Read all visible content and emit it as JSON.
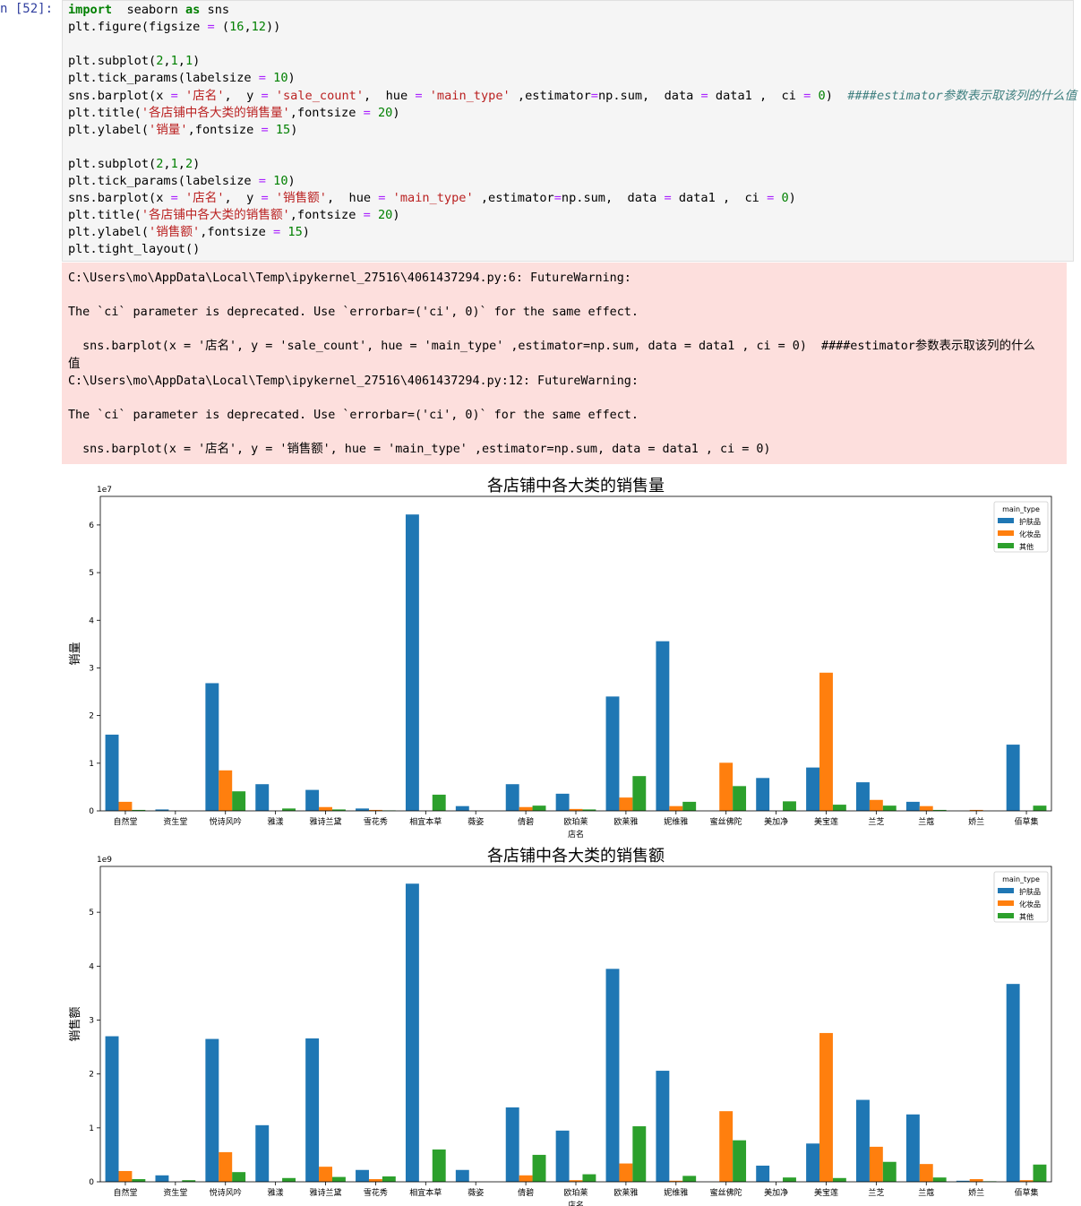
{
  "prompt": "n  [52]:",
  "code_lines": [
    [
      [
        "kw",
        "import"
      ],
      [
        "",
        "  seaborn "
      ],
      [
        "kw",
        "as"
      ],
      [
        "",
        " sns"
      ]
    ],
    [
      [
        "",
        "plt.figure(figsize "
      ],
      [
        "op",
        "="
      ],
      [
        "",
        " ("
      ],
      [
        "num",
        "16"
      ],
      [
        "",
        ","
      ],
      [
        "num",
        "12"
      ],
      [
        "",
        "))"
      ]
    ],
    [],
    [
      [
        "",
        "plt.subplot("
      ],
      [
        "num",
        "2"
      ],
      [
        "",
        ","
      ],
      [
        "num",
        "1"
      ],
      [
        "",
        ","
      ],
      [
        "num",
        "1"
      ],
      [
        "",
        ")"
      ]
    ],
    [
      [
        "",
        "plt.tick_params(labelsize "
      ],
      [
        "op",
        "="
      ],
      [
        "",
        " "
      ],
      [
        "num",
        "10"
      ],
      [
        "",
        ")"
      ]
    ],
    [
      [
        "",
        "sns.barplot(x "
      ],
      [
        "op",
        "="
      ],
      [
        "",
        " "
      ],
      [
        "str",
        "'店名'"
      ],
      [
        "",
        ",  y "
      ],
      [
        "op",
        "="
      ],
      [
        "",
        " "
      ],
      [
        "str",
        "'sale_count'"
      ],
      [
        "",
        ",  hue "
      ],
      [
        "op",
        "="
      ],
      [
        "",
        " "
      ],
      [
        "str",
        "'main_type'"
      ],
      [
        "",
        " ,estimator"
      ],
      [
        "op",
        "="
      ],
      [
        "",
        "np.sum,  data "
      ],
      [
        "op",
        "="
      ],
      [
        "",
        " data1 ,  ci "
      ],
      [
        "op",
        "="
      ],
      [
        "",
        " "
      ],
      [
        "num",
        "0"
      ],
      [
        "",
        ")  "
      ],
      [
        "cm",
        "####estimator参数表示取该列的什么值"
      ]
    ],
    [
      [
        "",
        "plt.title("
      ],
      [
        "str",
        "'各店铺中各大类的销售量'"
      ],
      [
        "",
        ",fontsize "
      ],
      [
        "op",
        "="
      ],
      [
        "",
        " "
      ],
      [
        "num",
        "20"
      ],
      [
        "",
        ")"
      ]
    ],
    [
      [
        "",
        "plt.ylabel("
      ],
      [
        "str",
        "'销量'"
      ],
      [
        "",
        ",fontsize "
      ],
      [
        "op",
        "="
      ],
      [
        "",
        " "
      ],
      [
        "num",
        "15"
      ],
      [
        "",
        ")"
      ]
    ],
    [],
    [
      [
        "",
        "plt.subplot("
      ],
      [
        "num",
        "2"
      ],
      [
        "",
        ","
      ],
      [
        "num",
        "1"
      ],
      [
        "",
        ","
      ],
      [
        "num",
        "2"
      ],
      [
        "",
        ")"
      ]
    ],
    [
      [
        "",
        "plt.tick_params(labelsize "
      ],
      [
        "op",
        "="
      ],
      [
        "",
        " "
      ],
      [
        "num",
        "10"
      ],
      [
        "",
        ")"
      ]
    ],
    [
      [
        "",
        "sns.barplot(x "
      ],
      [
        "op",
        "="
      ],
      [
        "",
        " "
      ],
      [
        "str",
        "'店名'"
      ],
      [
        "",
        ",  y "
      ],
      [
        "op",
        "="
      ],
      [
        "",
        " "
      ],
      [
        "str",
        "'销售额'"
      ],
      [
        "",
        ",  hue "
      ],
      [
        "op",
        "="
      ],
      [
        "",
        " "
      ],
      [
        "str",
        "'main_type'"
      ],
      [
        "",
        " ,estimator"
      ],
      [
        "op",
        "="
      ],
      [
        "",
        "np.sum,  data "
      ],
      [
        "op",
        "="
      ],
      [
        "",
        " data1 ,  ci "
      ],
      [
        "op",
        "="
      ],
      [
        "",
        " "
      ],
      [
        "num",
        "0"
      ],
      [
        "",
        ")"
      ]
    ],
    [
      [
        "",
        "plt.title("
      ],
      [
        "str",
        "'各店铺中各大类的销售额'"
      ],
      [
        "",
        ",fontsize "
      ],
      [
        "op",
        "="
      ],
      [
        "",
        " "
      ],
      [
        "num",
        "20"
      ],
      [
        "",
        ")"
      ]
    ],
    [
      [
        "",
        "plt.ylabel("
      ],
      [
        "str",
        "'销售额'"
      ],
      [
        "",
        ",fontsize "
      ],
      [
        "op",
        "="
      ],
      [
        "",
        " "
      ],
      [
        "num",
        "15"
      ],
      [
        "",
        ")"
      ]
    ],
    [
      [
        "",
        "plt.tight_layout()"
      ]
    ]
  ],
  "stderr_lines": [
    "C:\\Users\\mo\\AppData\\Local\\Temp\\ipykernel_27516\\4061437294.py:6: FutureWarning:",
    "",
    "The `ci` parameter is deprecated. Use `errorbar=('ci', 0)` for the same effect.",
    "",
    "  sns.barplot(x = '店名', y = 'sale_count', hue = 'main_type' ,estimator=np.sum, data = data1 , ci = 0)  ####estimator参数表示取该列的什么",
    "值",
    "C:\\Users\\mo\\AppData\\Local\\Temp\\ipykernel_27516\\4061437294.py:12: FutureWarning:",
    "",
    "The `ci` parameter is deprecated. Use `errorbar=('ci', 0)` for the same effect.",
    "",
    "  sns.barplot(x = '店名', y = '销售额', hue = 'main_type' ,estimator=np.sum, data = data1 , ci = 0)"
  ],
  "colors": {
    "护肤品": "#1f77b4",
    "化妆品": "#ff7f0e",
    "其他": "#2ca02c"
  },
  "chart_data": [
    {
      "type": "bar",
      "title": "各店铺中各大类的销售量",
      "xlabel": "店名",
      "ylabel": "销量",
      "offset_text": "1e7",
      "ylim": [
        0,
        6.6
      ],
      "yticks": [
        0,
        1,
        2,
        3,
        4,
        5,
        6
      ],
      "legend_title": "main_type",
      "legend_position": "top-right",
      "categories": [
        "自然堂",
        "资生堂",
        "悦诗风吟",
        "雅漾",
        "雅诗兰黛",
        "雪花秀",
        "相宜本草",
        "薇姿",
        "倩碧",
        "欧珀莱",
        "欧莱雅",
        "妮维雅",
        "蜜丝佛陀",
        "美加净",
        "美宝莲",
        "兰芝",
        "兰蔻",
        "娇兰",
        "佰草集"
      ],
      "series": [
        {
          "name": "护肤品",
          "values": [
            1.6,
            0.03,
            2.68,
            0.56,
            0.44,
            0.05,
            6.22,
            0.1,
            0.56,
            0.36,
            2.4,
            3.56,
            0,
            0.69,
            0.91,
            0.6,
            0.19,
            0,
            1.39
          ]
        },
        {
          "name": "化妆品",
          "values": [
            0.19,
            0,
            0.85,
            0,
            0.08,
            0.02,
            0,
            0,
            0.08,
            0.04,
            0.28,
            0.1,
            1.01,
            0,
            2.9,
            0.23,
            0.1,
            0.02,
            0
          ]
        },
        {
          "name": "其他",
          "values": [
            0.02,
            0,
            0.41,
            0.05,
            0.03,
            0.01,
            0.34,
            0,
            0.11,
            0.03,
            0.73,
            0.19,
            0.52,
            0.2,
            0.13,
            0.11,
            0.02,
            0,
            0.11
          ]
        }
      ]
    },
    {
      "type": "bar",
      "title": "各店铺中各大类的销售额",
      "xlabel": "店名",
      "ylabel": "销售额",
      "offset_text": "1e9",
      "ylim": [
        0,
        5.85
      ],
      "yticks": [
        0,
        1,
        2,
        3,
        4,
        5
      ],
      "legend_title": "main_type",
      "legend_position": "top-right",
      "categories": [
        "自然堂",
        "资生堂",
        "悦诗风吟",
        "雅漾",
        "雅诗兰黛",
        "雪花秀",
        "相宜本草",
        "薇姿",
        "倩碧",
        "欧珀莱",
        "欧莱雅",
        "妮维雅",
        "蜜丝佛陀",
        "美加净",
        "美宝莲",
        "兰芝",
        "兰蔻",
        "娇兰",
        "佰草集"
      ],
      "series": [
        {
          "name": "护肤品",
          "values": [
            2.7,
            0.12,
            2.65,
            1.05,
            2.66,
            0.22,
            5.53,
            0.22,
            1.38,
            0.95,
            3.95,
            2.06,
            0,
            0.3,
            0.71,
            1.52,
            1.25,
            0.02,
            3.67
          ]
        },
        {
          "name": "化妆品",
          "values": [
            0.2,
            0,
            0.55,
            0,
            0.28,
            0.05,
            0,
            0,
            0.12,
            0.03,
            0.34,
            0.02,
            1.31,
            0,
            2.76,
            0.65,
            0.33,
            0.05,
            0.03
          ]
        },
        {
          "name": "其他",
          "values": [
            0.05,
            0.03,
            0.18,
            0.07,
            0.09,
            0.1,
            0.6,
            0,
            0.5,
            0.14,
            1.03,
            0.11,
            0.77,
            0.08,
            0.07,
            0.37,
            0.08,
            0.01,
            0.32
          ]
        }
      ]
    }
  ]
}
